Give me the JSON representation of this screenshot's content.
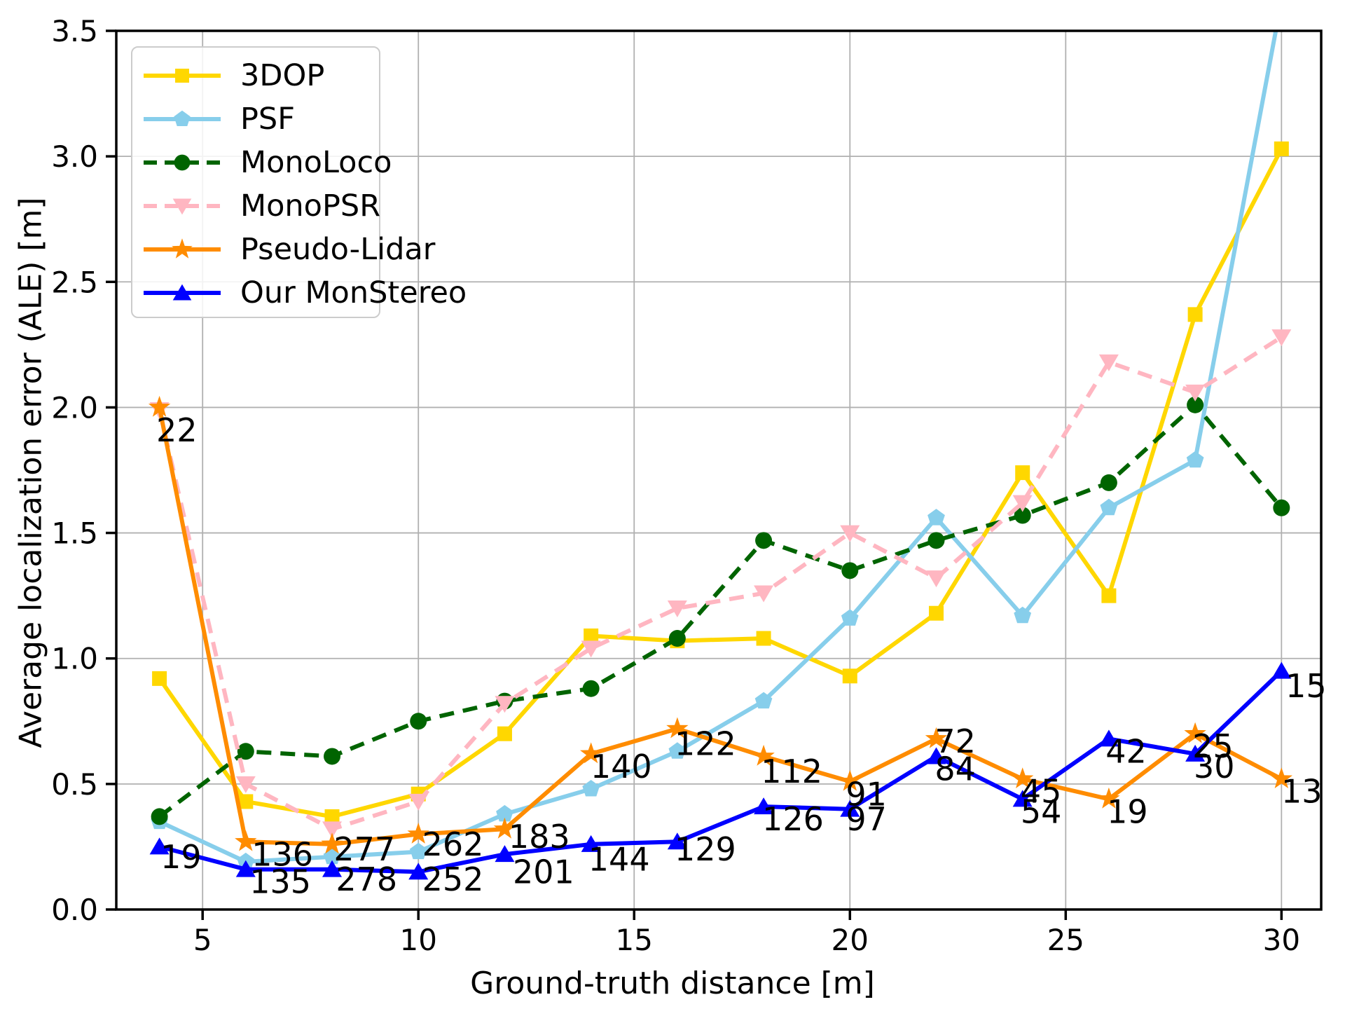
{
  "chart_data": {
    "type": "line",
    "title": "",
    "xlabel": "Ground-truth distance [m]",
    "ylabel": "Average localization error (ALE) [m]",
    "xlim": [
      3.0,
      30.92
    ],
    "ylim": [
      0.0,
      3.5
    ],
    "xticks": [
      5,
      10,
      15,
      20,
      25,
      30
    ],
    "yticks": [
      "0.0",
      "0.5",
      "1.0",
      "1.5",
      "2.0",
      "2.5",
      "3.0",
      "3.5"
    ],
    "grid": true,
    "grid_color": "#b0b0b0",
    "legend_position": "upper left",
    "x": [
      4,
      6,
      8,
      10,
      12,
      14,
      16,
      18,
      20,
      22,
      24,
      26,
      28,
      30
    ],
    "series": [
      {
        "name": "3DOP",
        "color": "#FFD700",
        "marker": "square",
        "dash": null,
        "values": [
          0.92,
          0.43,
          0.37,
          0.46,
          0.7,
          1.09,
          1.07,
          1.08,
          0.93,
          1.18,
          1.74,
          1.25,
          2.37,
          3.03
        ]
      },
      {
        "name": "PSF",
        "color": "#87CEEB",
        "marker": "pentagon",
        "dash": null,
        "values": [
          0.35,
          0.19,
          0.21,
          0.23,
          0.38,
          0.48,
          0.63,
          0.83,
          1.16,
          1.56,
          1.17,
          1.6,
          1.79,
          3.62
        ]
      },
      {
        "name": "MonoLoco",
        "color": "#006400",
        "marker": "circle",
        "dash": "dashed",
        "values": [
          0.37,
          0.63,
          0.61,
          0.75,
          0.83,
          0.88,
          1.08,
          1.47,
          1.35,
          1.47,
          1.57,
          1.7,
          2.01,
          1.6
        ]
      },
      {
        "name": "MonoPSR",
        "color": "#FFB6C1",
        "marker": "triangle-down",
        "dash": "dashed",
        "values": [
          1.99,
          0.5,
          0.32,
          0.43,
          0.82,
          1.04,
          1.2,
          1.26,
          1.5,
          1.32,
          1.62,
          2.18,
          2.06,
          2.28
        ]
      },
      {
        "name": "Pseudo-Lidar",
        "color": "#FF8C00",
        "marker": "star",
        "dash": null,
        "values": [
          2.0,
          0.27,
          0.26,
          0.3,
          0.32,
          0.62,
          0.72,
          0.61,
          0.51,
          0.68,
          0.52,
          0.44,
          0.7,
          0.52
        ]
      },
      {
        "name": "Our MonStereo",
        "color": "#0000FF",
        "marker": "triangle-up",
        "dash": null,
        "values": [
          0.25,
          0.16,
          0.16,
          0.15,
          0.22,
          0.26,
          0.27,
          0.41,
          0.4,
          0.61,
          0.44,
          0.68,
          0.62,
          0.95
        ]
      }
    ],
    "annotations": [
      {
        "x": 4.4,
        "y": 1.9,
        "text": "22"
      },
      {
        "x": 4.5,
        "y": 0.2,
        "text": "19"
      },
      {
        "x": 6.85,
        "y": 0.21,
        "text": "136"
      },
      {
        "x": 6.8,
        "y": 0.1,
        "text": "135"
      },
      {
        "x": 8.75,
        "y": 0.23,
        "text": "277"
      },
      {
        "x": 8.8,
        "y": 0.11,
        "text": "278"
      },
      {
        "x": 10.8,
        "y": 0.25,
        "text": "262"
      },
      {
        "x": 10.8,
        "y": 0.11,
        "text": "252"
      },
      {
        "x": 12.8,
        "y": 0.28,
        "text": "183"
      },
      {
        "x": 12.9,
        "y": 0.14,
        "text": "201"
      },
      {
        "x": 14.7,
        "y": 0.56,
        "text": "140"
      },
      {
        "x": 14.65,
        "y": 0.19,
        "text": "144"
      },
      {
        "x": 16.65,
        "y": 0.65,
        "text": "122"
      },
      {
        "x": 16.65,
        "y": 0.23,
        "text": "129"
      },
      {
        "x": 18.65,
        "y": 0.54,
        "text": "112"
      },
      {
        "x": 18.68,
        "y": 0.35,
        "text": "126"
      },
      {
        "x": 20.38,
        "y": 0.45,
        "text": "91"
      },
      {
        "x": 20.38,
        "y": 0.35,
        "text": "97"
      },
      {
        "x": 22.44,
        "y": 0.66,
        "text": "72"
      },
      {
        "x": 22.44,
        "y": 0.55,
        "text": "84"
      },
      {
        "x": 24.43,
        "y": 0.46,
        "text": "45"
      },
      {
        "x": 24.43,
        "y": 0.38,
        "text": "54"
      },
      {
        "x": 26.4,
        "y": 0.62,
        "text": "42"
      },
      {
        "x": 26.43,
        "y": 0.38,
        "text": "19"
      },
      {
        "x": 28.41,
        "y": 0.64,
        "text": "25"
      },
      {
        "x": 28.44,
        "y": 0.56,
        "text": "30"
      },
      {
        "x": 30.57,
        "y": 0.88,
        "text": "15"
      },
      {
        "x": 30.47,
        "y": 0.46,
        "text": "13"
      }
    ]
  }
}
